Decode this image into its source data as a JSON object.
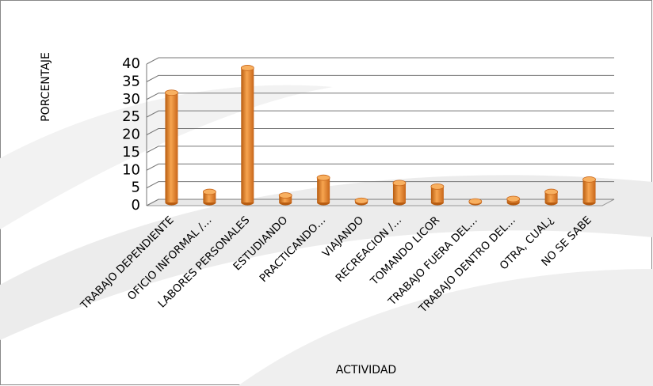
{
  "chart_data": {
    "type": "bar",
    "x_label": "ACTIVIDAD",
    "y_label": "PORCENTAJE",
    "categories": [
      "TRABAJO DEPENDIENTE",
      "OFICIO INFORMAL /…",
      "LABORES PERSONALES",
      "ESTUDIANDO",
      "PRACTICANDO…",
      "VIAJANDO",
      "RECREACION /…",
      "TOMANDO LICOR",
      "TRABAJO FUERA DEL…",
      "TRABAJO DENTRO DEL…",
      "OTRA, CUAL¿",
      "NO SE SABE"
    ],
    "values": [
      31,
      3,
      38,
      2,
      7,
      0.5,
      5.5,
      4.5,
      0.3,
      1,
      3,
      6.5
    ],
    "color": "#f0902a",
    "ylim": [
      0,
      40
    ],
    "yticks": [
      0,
      5,
      10,
      15,
      20,
      25,
      30,
      35,
      40
    ],
    "grid": true
  }
}
